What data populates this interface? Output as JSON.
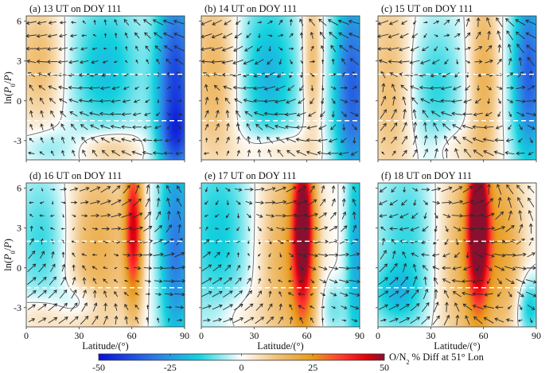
{
  "chart_data": {
    "type": "heatmap",
    "description": "Six-panel latitude vs. pressure-level contour maps of O/N2 percent difference with overlaid circulation vectors",
    "shared": {
      "xlabel": "Latitude/(°)",
      "ylabel": "ln(P0/P)",
      "xlim": [
        0,
        90
      ],
      "ylim": [
        -4.45,
        6.4
      ],
      "xticks": [
        0,
        30,
        60,
        90
      ],
      "yticks": [
        -3,
        0,
        3,
        6
      ],
      "dashed_reference_lines_y": [
        2,
        -1.5
      ],
      "zero_contour": true,
      "vector_overlay": true
    },
    "colorbar": {
      "label_prefix": "O/N",
      "label_sub": "2",
      "label_suffix": " % Diff at 51° Lon",
      "range": [
        -50,
        50
      ],
      "ticks": [
        -50,
        -25,
        0,
        25,
        50
      ],
      "tick_labels": [
        "-50",
        "-25",
        "0",
        "25",
        "50"
      ],
      "colors": [
        "#0a10d8",
        "#2f7be6",
        "#14d2de",
        "#ffffff",
        "#f1c27a",
        "#e89a1a",
        "#ff3a30",
        "#e0000a",
        "#8b1030"
      ],
      "color_stops": [
        -50,
        -30,
        -15,
        0,
        12,
        25,
        35,
        44,
        50
      ]
    },
    "panels": [
      {
        "id": "a",
        "title": "(a) 13 UT on DOY 111",
        "blobs": [
          {
            "lat": 8,
            "y": 3,
            "slat": 10,
            "sy": 3.5,
            "v": 14
          },
          {
            "lat": 45,
            "y": 2.5,
            "slat": 15,
            "sy": 4,
            "v": -18
          },
          {
            "lat": 85,
            "y": 1,
            "slat": 8,
            "sy": 6,
            "v": -40
          },
          {
            "lat": 85,
            "y": -2.5,
            "slat": 6,
            "sy": 1.5,
            "v": -12
          },
          {
            "lat": 48,
            "y": -3.6,
            "slat": 12,
            "sy": 1,
            "v": 14
          },
          {
            "lat": 12,
            "y": -3.5,
            "slat": 10,
            "sy": 1,
            "v": -8
          }
        ],
        "flow": {
          "u0": -0.6,
          "v0": 0.2,
          "swirl": 0.4
        }
      },
      {
        "id": "b",
        "title": "(b) 14 UT on DOY 111",
        "blobs": [
          {
            "lat": 8,
            "y": 2,
            "slat": 10,
            "sy": 5,
            "v": 16
          },
          {
            "lat": 38,
            "y": 2,
            "slat": 13,
            "sy": 4.5,
            "v": -20
          },
          {
            "lat": 63,
            "y": 3,
            "slat": 4,
            "sy": 4,
            "v": 16
          },
          {
            "lat": 86,
            "y": 1,
            "slat": 8,
            "sy": 6,
            "v": -35
          },
          {
            "lat": 42,
            "y": -3.6,
            "slat": 14,
            "sy": 1,
            "v": 12
          }
        ],
        "flow": {
          "u0": -0.5,
          "v0": 0.1,
          "swirl": 0.6
        }
      },
      {
        "id": "c",
        "title": "(c) 15 UT on DOY 111",
        "blobs": [
          {
            "lat": 8,
            "y": 1,
            "slat": 10,
            "sy": 6,
            "v": 14
          },
          {
            "lat": 32,
            "y": 1,
            "slat": 12,
            "sy": 4,
            "v": -14
          },
          {
            "lat": 60,
            "y": 2,
            "slat": 6,
            "sy": 5,
            "v": 18
          },
          {
            "lat": 86,
            "y": 2,
            "slat": 7,
            "sy": 5,
            "v": -35
          },
          {
            "lat": 45,
            "y": -3.5,
            "slat": 12,
            "sy": 1.2,
            "v": 8
          }
        ],
        "flow": {
          "u0": -0.3,
          "v0": 0.3,
          "swirl": 0.7
        }
      },
      {
        "id": "d",
        "title": "(d) 16 UT on DOY 111",
        "blobs": [
          {
            "lat": 10,
            "y": 2,
            "slat": 12,
            "sy": 4,
            "v": -14
          },
          {
            "lat": 40,
            "y": 1.5,
            "slat": 14,
            "sy": 5,
            "v": 18
          },
          {
            "lat": 61,
            "y": 3,
            "slat": 3.5,
            "sy": 4,
            "v": 40
          },
          {
            "lat": 85,
            "y": 1.5,
            "slat": 7,
            "sy": 6,
            "v": -30
          },
          {
            "lat": 30,
            "y": -2.6,
            "slat": 10,
            "sy": 1,
            "v": -10
          },
          {
            "lat": 10,
            "y": -3.6,
            "slat": 12,
            "sy": 1.2,
            "v": 10
          }
        ],
        "flow": {
          "u0": 0.4,
          "v0": 0.4,
          "swirl": 0.5
        }
      },
      {
        "id": "e",
        "title": "(e) 17 UT on DOY 111",
        "blobs": [
          {
            "lat": 10,
            "y": 2.5,
            "slat": 14,
            "sy": 5,
            "v": -16
          },
          {
            "lat": 48,
            "y": 1,
            "slat": 12,
            "sy": 6,
            "v": 18
          },
          {
            "lat": 58,
            "y": 3,
            "slat": 4.5,
            "sy": 5,
            "v": 48
          },
          {
            "lat": 88,
            "y": 1,
            "slat": 4,
            "sy": 6,
            "v": -22
          },
          {
            "lat": 75,
            "y": -3,
            "slat": 5,
            "sy": 1.5,
            "v": -10
          },
          {
            "lat": 20,
            "y": -3.5,
            "slat": 10,
            "sy": 1.2,
            "v": 6
          }
        ],
        "flow": {
          "u0": 0.5,
          "v0": 0.2,
          "swirl": 0.5
        }
      },
      {
        "id": "f",
        "title": "(f) 18 UT on DOY 111",
        "blobs": [
          {
            "lat": 18,
            "y": 2,
            "slat": 14,
            "sy": 5,
            "v": -14
          },
          {
            "lat": 50,
            "y": 1,
            "slat": 14,
            "sy": 6,
            "v": 18
          },
          {
            "lat": 57,
            "y": 3.5,
            "slat": 4.5,
            "sy": 4.5,
            "v": 50
          },
          {
            "lat": 72,
            "y": 2,
            "slat": 8,
            "sy": 5,
            "v": 16
          },
          {
            "lat": 86,
            "y": -3,
            "slat": 5,
            "sy": 1.6,
            "v": -18
          },
          {
            "lat": 10,
            "y": -2,
            "slat": 10,
            "sy": 1.5,
            "v": -12
          }
        ],
        "flow": {
          "u0": 0.2,
          "v0": 0.3,
          "swirl": 0.8
        }
      }
    ]
  }
}
